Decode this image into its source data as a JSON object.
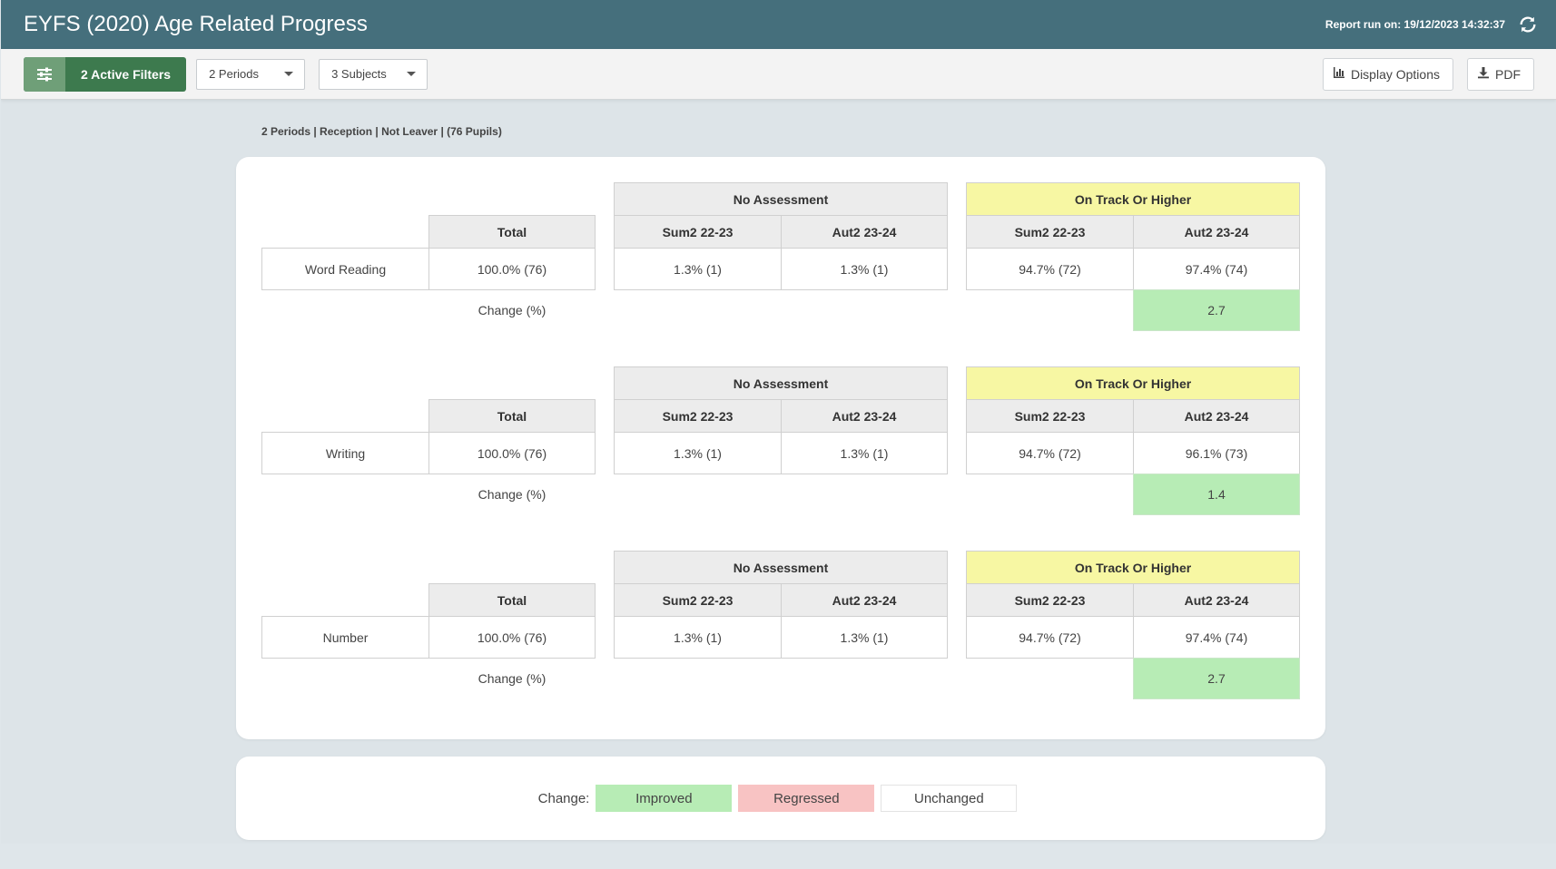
{
  "header": {
    "title": "EYFS (2020) Age Related Progress",
    "report_run": "Report run on: 19/12/2023 14:32:37"
  },
  "toolbar": {
    "filters_label": "2 Active Filters",
    "periods_select": "2 Periods",
    "subjects_select": "3 Subjects",
    "display_options_label": "Display Options",
    "pdf_label": "PDF"
  },
  "summary": "2 Periods | Reception | Not Leaver | (76 Pupils)",
  "table_headers": {
    "no_assessment": "No Assessment",
    "on_track": "On Track Or Higher",
    "total": "Total",
    "period_1": "Sum2 22-23",
    "period_2": "Aut2 23-24",
    "change": "Change (%)"
  },
  "subjects": [
    {
      "name": "Word Reading",
      "total": "100.0% (76)",
      "na_p1": "1.3% (1)",
      "na_p2": "1.3% (1)",
      "ot_p1": "94.7% (72)",
      "ot_p2": "97.4% (74)",
      "change": "2.7"
    },
    {
      "name": "Writing",
      "total": "100.0% (76)",
      "na_p1": "1.3% (1)",
      "na_p2": "1.3% (1)",
      "ot_p1": "94.7% (72)",
      "ot_p2": "96.1% (73)",
      "change": "1.4"
    },
    {
      "name": "Number",
      "total": "100.0% (76)",
      "na_p1": "1.3% (1)",
      "na_p2": "1.3% (1)",
      "ot_p1": "94.7% (72)",
      "ot_p2": "97.4% (74)",
      "change": "2.7"
    }
  ],
  "legend": {
    "label": "Change:",
    "improved": "Improved",
    "regressed": "Regressed",
    "unchanged": "Unchanged"
  },
  "colors": {
    "header_bg": "#456f7c",
    "filters_green": "#3d7a4e",
    "improved": "#b7ecb5",
    "regressed": "#f8c3c3",
    "on_track_header": "#f7f7a3"
  }
}
